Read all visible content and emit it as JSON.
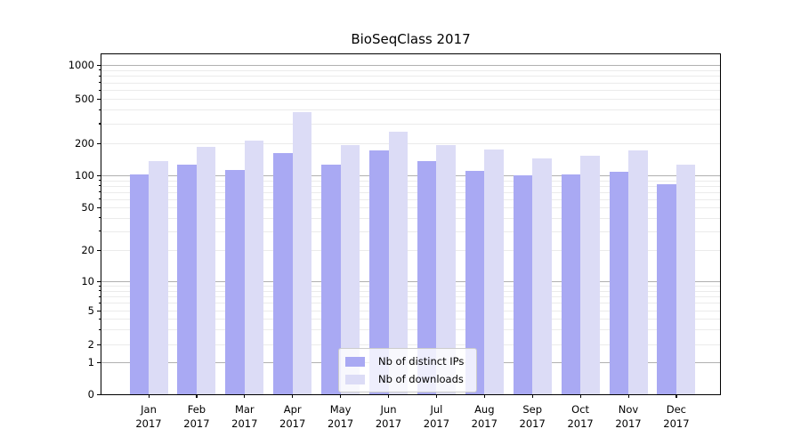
{
  "chart_data": {
    "type": "bar",
    "title": "BioSeqClass 2017",
    "categories": [
      "Jan\n2017",
      "Feb\n2017",
      "Mar\n2017",
      "Apr\n2017",
      "May\n2017",
      "Jun\n2017",
      "Jul\n2017",
      "Aug\n2017",
      "Sep\n2017",
      "Oct\n2017",
      "Nov\n2017",
      "Dec\n2017"
    ],
    "series": [
      {
        "name": "Nb of distinct IPs",
        "color": "#a9a9f3",
        "values": [
          102,
          125,
          112,
          162,
          127,
          171,
          135,
          110,
          100,
          102,
          109,
          83
        ]
      },
      {
        "name": "Nb of downloads",
        "color": "#dcdcf6",
        "values": [
          135,
          185,
          210,
          380,
          191,
          253,
          191,
          175,
          145,
          153,
          171,
          127
        ]
      }
    ],
    "xlabel": "",
    "ylabel": "",
    "yscale": "symlog",
    "ylim": [
      0,
      1400
    ],
    "y_ticks": [
      {
        "value": 0,
        "label": "0"
      },
      {
        "value": 1,
        "label": "1"
      },
      {
        "value": 2,
        "label": "2"
      },
      {
        "value": 5,
        "label": "5"
      },
      {
        "value": 10,
        "label": "10"
      },
      {
        "value": 20,
        "label": "20"
      },
      {
        "value": 50,
        "label": "50"
      },
      {
        "value": 100,
        "label": "100"
      },
      {
        "value": 200,
        "label": "200"
      },
      {
        "value": 500,
        "label": "500"
      },
      {
        "value": 1000,
        "label": "1000"
      }
    ],
    "grid": true,
    "legend_position": "lower center"
  }
}
